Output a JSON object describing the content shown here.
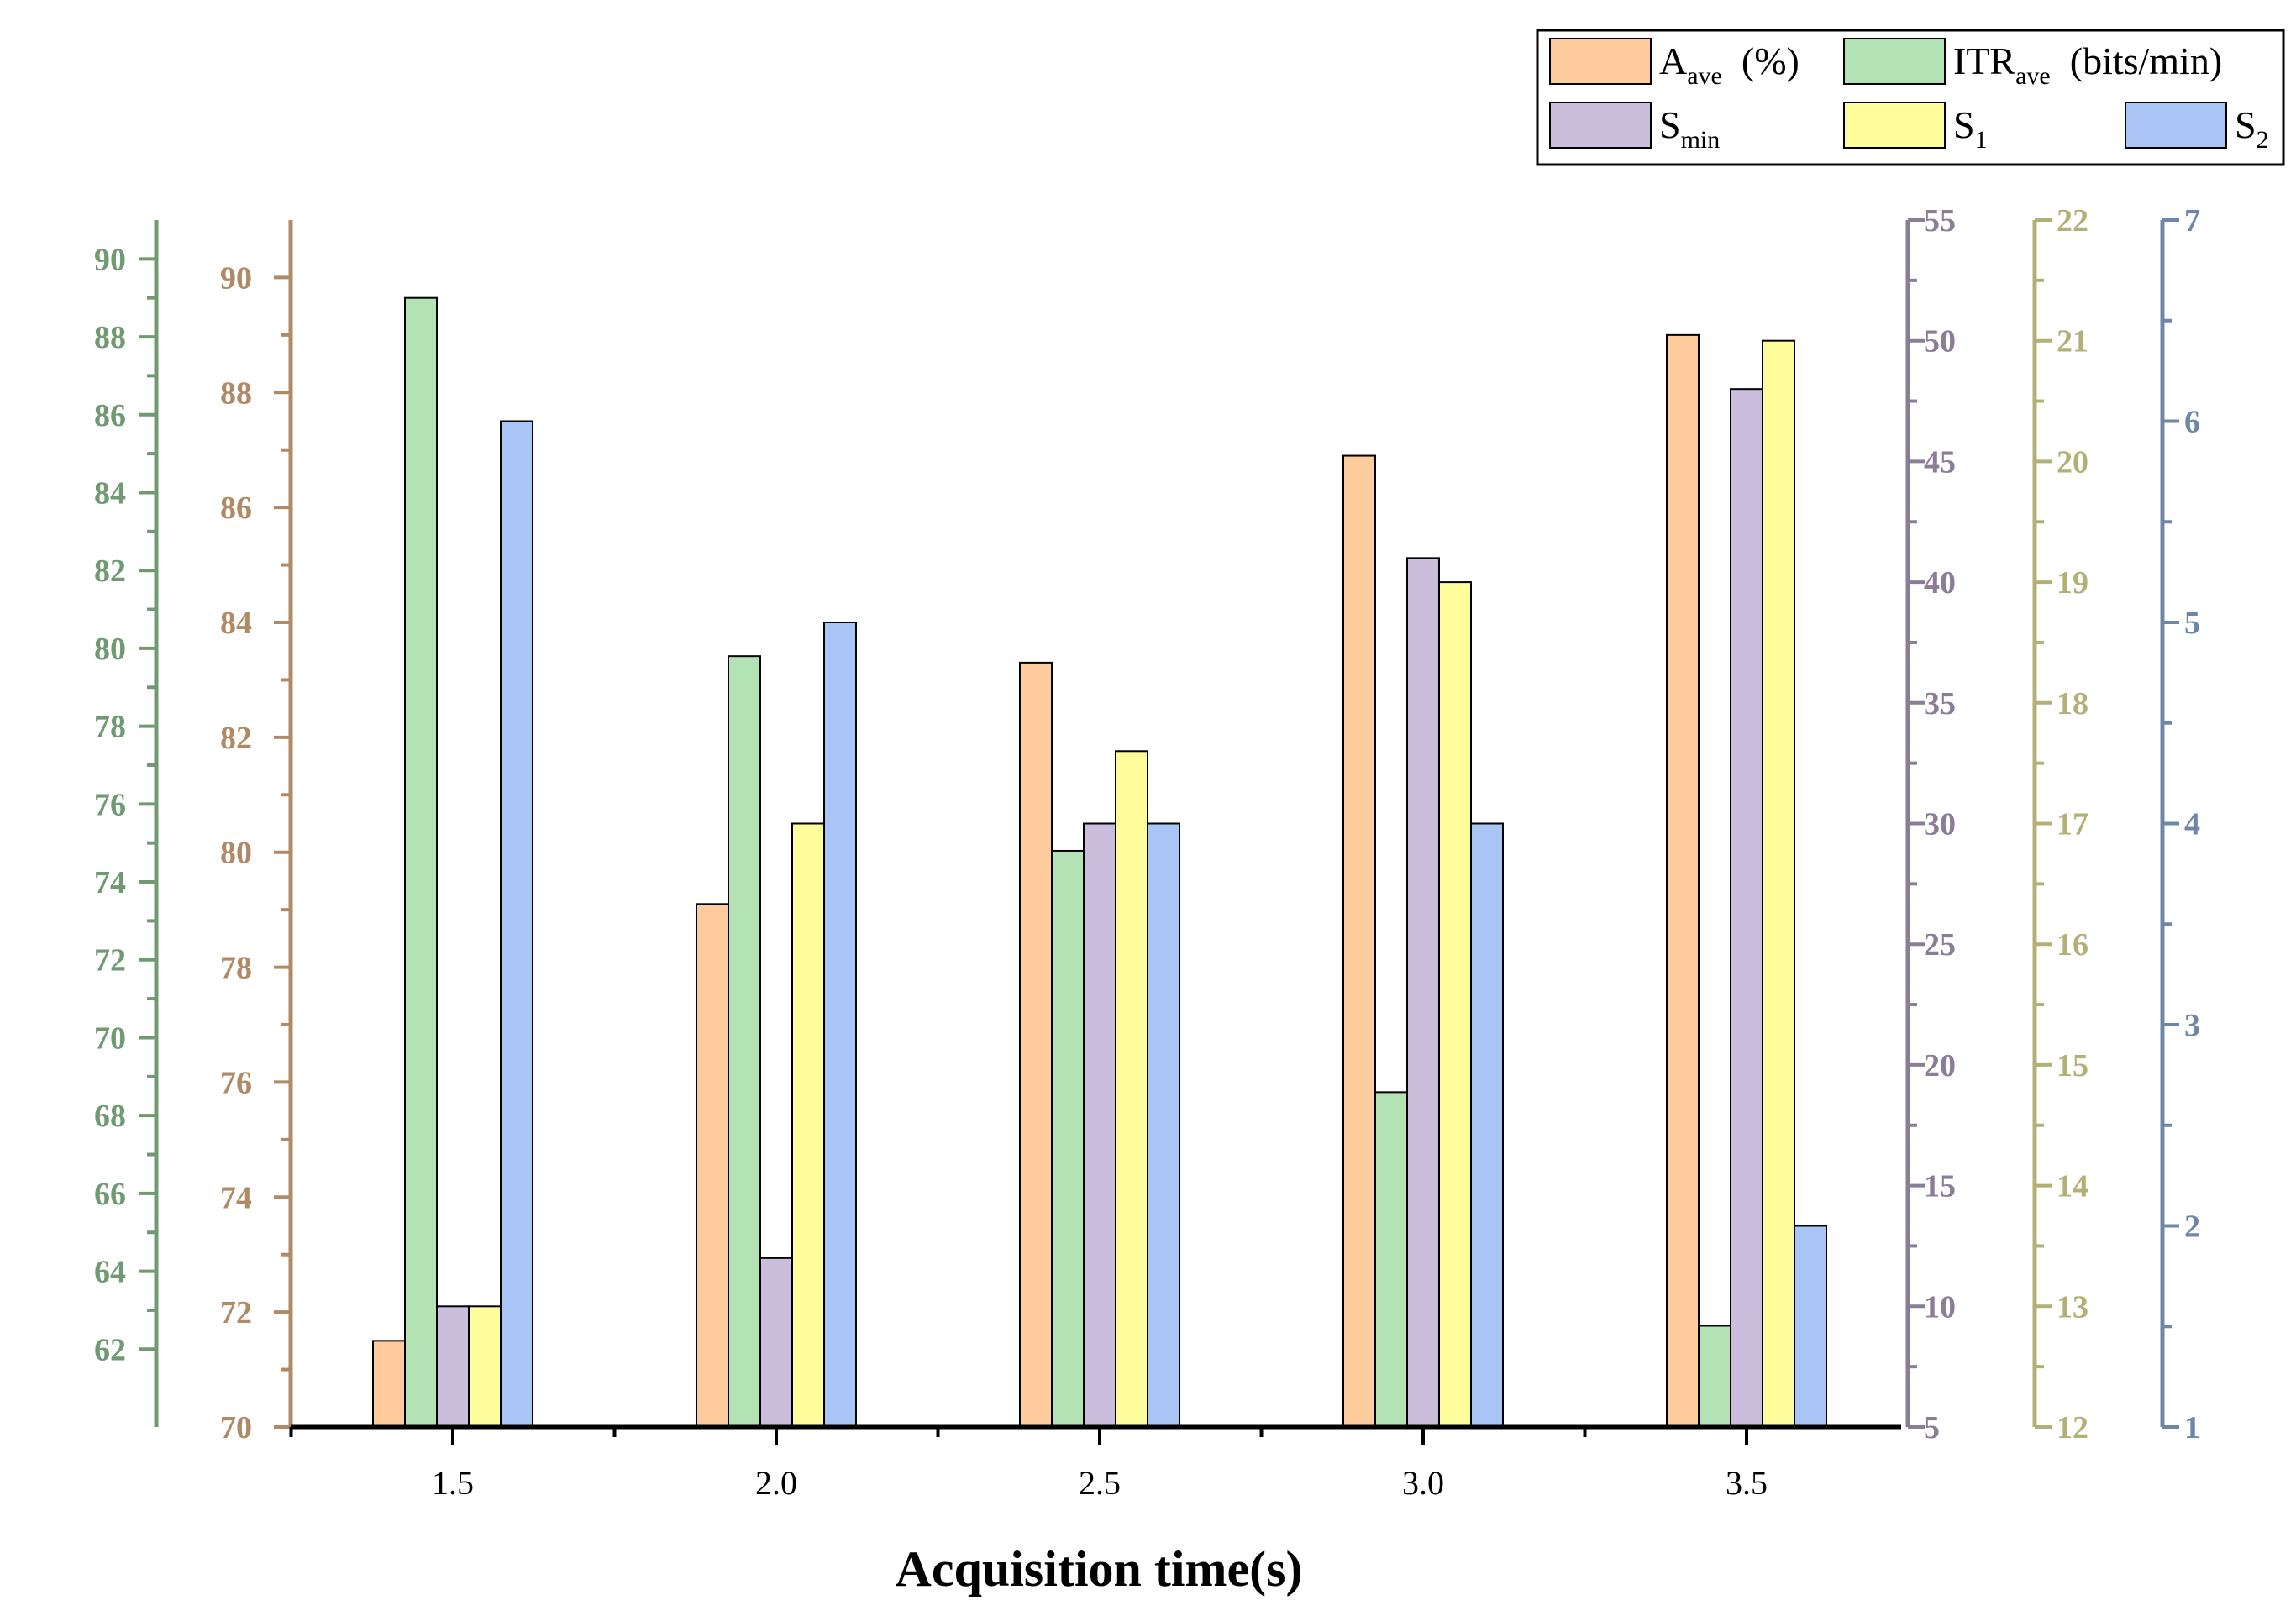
{
  "chart_data": {
    "type": "bar",
    "xlabel": "Acquisition time(s)",
    "categories": [
      "1.5",
      "2.0",
      "2.5",
      "3.0",
      "3.5"
    ],
    "axes": [
      {
        "id": "acc",
        "ylim": [
          70,
          91
        ],
        "ticks": [
          70,
          72,
          74,
          76,
          78,
          80,
          82,
          84,
          86,
          88,
          90
        ],
        "tick_labels": [
          "70",
          "72",
          "74",
          "76",
          "78",
          "80",
          "82",
          "84",
          "86",
          "88",
          "90"
        ],
        "color": "#b08a66"
      },
      {
        "id": "itr",
        "ylim": [
          60,
          91
        ],
        "ticks": [
          62,
          64,
          66,
          68,
          70,
          72,
          74,
          76,
          78,
          80,
          82,
          84,
          86,
          88,
          90
        ],
        "tick_labels": [
          "62",
          "64",
          "66",
          "68",
          "70",
          "72",
          "74",
          "76",
          "78",
          "80",
          "82",
          "84",
          "86",
          "88",
          "90"
        ],
        "color": "#6f9a72"
      },
      {
        "id": "smin",
        "ylim": [
          5,
          55
        ],
        "ticks": [
          5,
          10,
          15,
          20,
          25,
          30,
          35,
          40,
          45,
          50,
          55
        ],
        "tick_labels": [
          "5",
          "10",
          "15",
          "20",
          "25",
          "30",
          "35",
          "40",
          "45",
          "50",
          "55"
        ],
        "color": "#8b7d96"
      },
      {
        "id": "s1",
        "ylim": [
          12,
          22
        ],
        "ticks": [
          12,
          13,
          14,
          15,
          16,
          17,
          18,
          19,
          20,
          21,
          22
        ],
        "tick_labels": [
          "12",
          "13",
          "14",
          "15",
          "16",
          "17",
          "18",
          "19",
          "20",
          "21",
          "22"
        ],
        "color": "#b3b075"
      },
      {
        "id": "s2",
        "ylim": [
          1,
          7
        ],
        "ticks": [
          1,
          2,
          3,
          4,
          5,
          6,
          7
        ],
        "tick_labels": [
          "1",
          "2",
          "3",
          "4",
          "5",
          "6",
          "7"
        ],
        "color": "#6e87a8"
      }
    ],
    "series": [
      {
        "name": "A_ave (%)",
        "label_main": "A",
        "label_sub": "ave",
        "label_tail": "(%)",
        "axis": "acc",
        "color": "#fdcb9c",
        "values": [
          71.5,
          79.1,
          83.3,
          86.9,
          89.0
        ]
      },
      {
        "name": "ITR_ave (bits/min)",
        "label_main": "ITR",
        "label_sub": "ave",
        "label_tail": "(bits/min)",
        "axis": "itr",
        "color": "#b3e2b4",
        "values": [
          89.0,
          79.8,
          74.8,
          68.6,
          62.6
        ]
      },
      {
        "name": "S_min",
        "label_main": "S",
        "label_sub": "min",
        "label_tail": "",
        "axis": "smin",
        "color": "#cbbedd",
        "values": [
          10,
          12,
          30,
          41,
          48
        ]
      },
      {
        "name": "S_1",
        "label_main": "S",
        "label_sub": "1",
        "label_tail": "",
        "axis": "s1",
        "color": "#fdfd9c",
        "values": [
          13,
          17,
          17.6,
          19,
          21
        ]
      },
      {
        "name": "S_2",
        "label_main": "S",
        "label_sub": "2",
        "label_tail": "",
        "axis": "s2",
        "color": "#a9c5f5",
        "values": [
          6,
          5,
          4,
          4,
          2
        ]
      }
    ],
    "legend_position": "top-right"
  }
}
